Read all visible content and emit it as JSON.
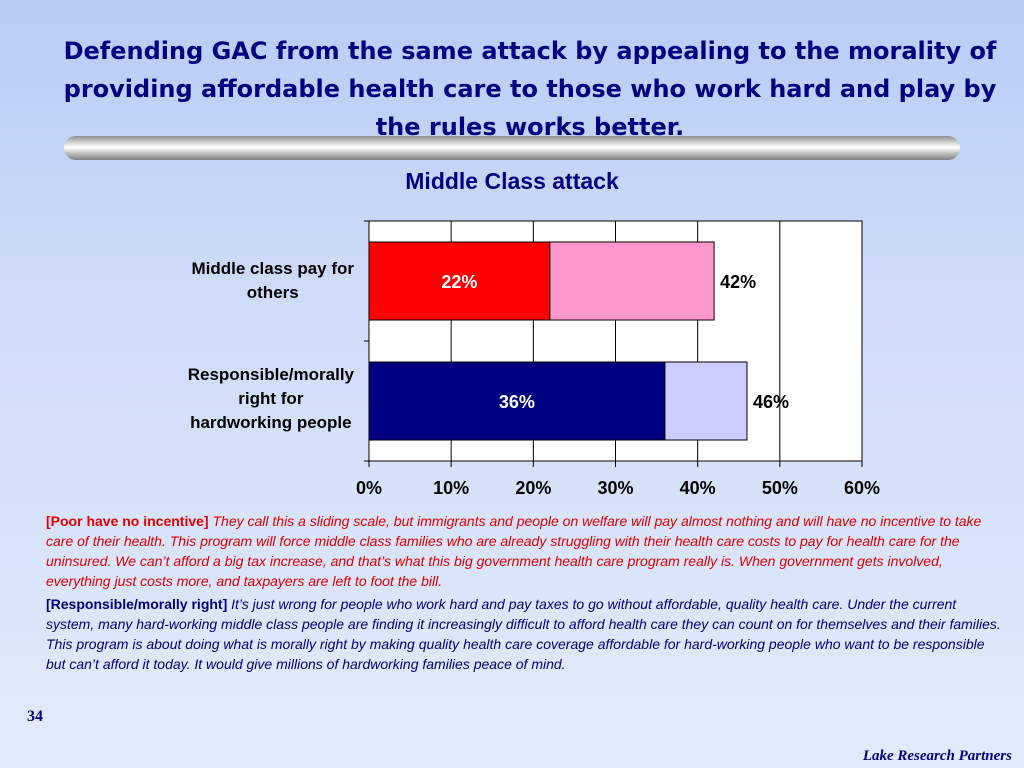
{
  "slide": {
    "title": "Defending GAC from the same attack by appealing to the morality of providing affordable health care to those who work hard and play by the rules works better.",
    "page_number": "34",
    "brand": "Lake Research Partners"
  },
  "chart_data": {
    "type": "bar",
    "orientation": "horizontal",
    "stacked": true,
    "title": "Middle Class attack",
    "xlim": [
      0,
      60
    ],
    "x_ticks": [
      "0%",
      "10%",
      "20%",
      "30%",
      "40%",
      "50%",
      "60%"
    ],
    "grid": "vertical",
    "categories": [
      "Middle class pay for others",
      "Responsible/morally right for hardworking people"
    ],
    "bars": [
      {
        "category": "Middle class pay for others",
        "inner_value": 22,
        "total_value": 42,
        "inner_label": "22%",
        "total_label": "42%",
        "inner_color": "#ff0000",
        "outer_color": "#ff99cc",
        "inner_text_color": "#ffffff"
      },
      {
        "category": "Responsible/morally right for hardworking people",
        "inner_value": 36,
        "total_value": 46,
        "inner_label": "36%",
        "total_label": "46%",
        "inner_color": "#000080",
        "outer_color": "#ccccff",
        "inner_text_color": "#ffffff"
      }
    ]
  },
  "labels": {
    "cat1_line1": "Middle class pay for",
    "cat1_line2": "others",
    "cat2_line1": "Responsible/morally",
    "cat2_line2": "right for",
    "cat2_line3": "hardworking people"
  },
  "notes": {
    "red_tag": "[Poor have no incentive]",
    "red_text": "They call this a sliding scale, but immigrants and people on welfare will pay almost nothing and will have no incentive to take care of their health.  This program will force middle class families who are already struggling with their health care costs to pay for health care for the uninsured.  We can’t afford a big tax increase, and that’s what this big government health care program really is.  When government gets involved, everything just costs more, and taxpayers are left to foot the bill.",
    "blue_tag": "[Responsible/morally right]",
    "blue_text": "It’s just wrong for people who work hard and pay taxes to go without affordable, quality health care.  Under the current system, many hard-working middle class people are finding it increasingly difficult to afford health care they can count on for themselves and their families.  This program is about doing what is morally right by making quality health care coverage affordable for hard-working people who want to be responsible but can’t afford it today.  It would give millions of hardworking families peace of mind."
  },
  "colors": {
    "title": "#000080",
    "red_note": "#e00000",
    "blue_note": "#000080"
  }
}
